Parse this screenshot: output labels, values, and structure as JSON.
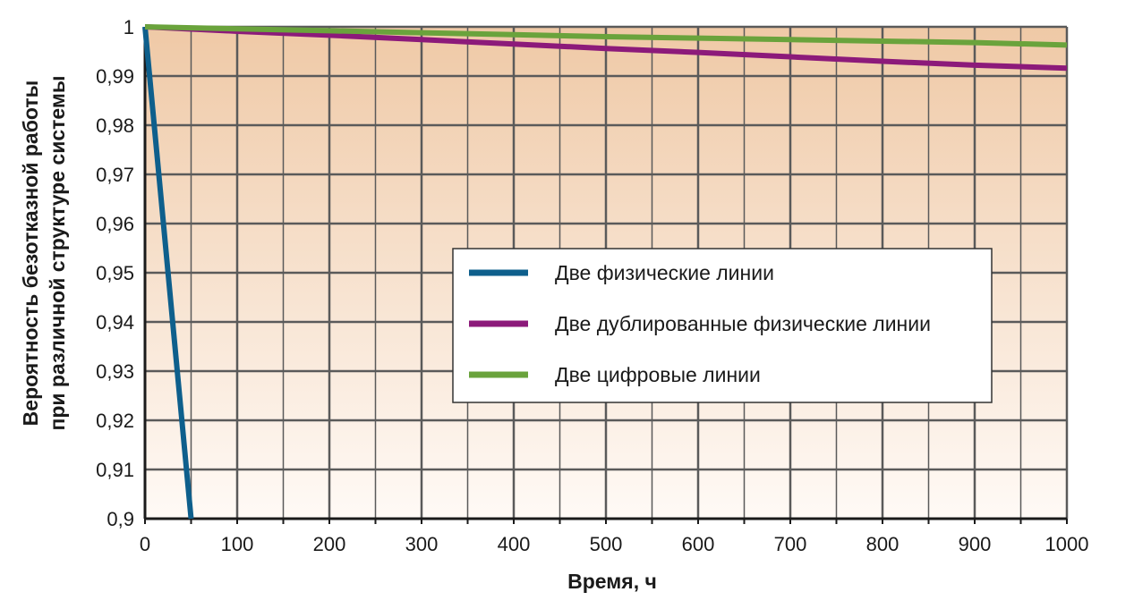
{
  "chart_data": {
    "type": "line",
    "xlabel": "Время, ч",
    "ylabel_line1": "Вероятность безотказной работы",
    "ylabel_line2": "при различной структуре системы",
    "xlim": [
      0,
      1000
    ],
    "ylim": [
      0.9,
      1
    ],
    "x_ticks": [
      0,
      100,
      200,
      300,
      400,
      500,
      600,
      700,
      800,
      900,
      1000
    ],
    "x_tick_labels": [
      "0",
      "100",
      "200",
      "300",
      "400",
      "500",
      "600",
      "700",
      "800",
      "900",
      "1000"
    ],
    "y_ticks": [
      0.9,
      0.91,
      0.92,
      0.93,
      0.94,
      0.95,
      0.96,
      0.97,
      0.98,
      0.99,
      1
    ],
    "y_tick_labels": [
      "0,9",
      "0,91",
      "0,92",
      "0,93",
      "0,94",
      "0,95",
      "0,96",
      "0,97",
      "0,98",
      "0,99",
      "1"
    ],
    "grid": true,
    "legend_position": "center-right",
    "series": [
      {
        "name": "Две физические линии",
        "color": "#0e5f8c",
        "x": [
          0,
          48,
          50
        ],
        "y": [
          1,
          0.904,
          0.9
        ]
      },
      {
        "name": "Две дублированные физические линии",
        "color": "#8c1a7a",
        "x": [
          0,
          100,
          200,
          300,
          400,
          500,
          600,
          700,
          800,
          900,
          1000
        ],
        "y": [
          1,
          0.9991,
          0.9983,
          0.9974,
          0.9965,
          0.9956,
          0.9948,
          0.9939,
          0.993,
          0.9922,
          0.9916
        ]
      },
      {
        "name": "Две цифровые линии",
        "color": "#6aa33c",
        "x": [
          0,
          100,
          200,
          300,
          400,
          500,
          600,
          700,
          800,
          900,
          1000
        ],
        "y": [
          1,
          0.9996,
          0.9992,
          0.9988,
          0.9984,
          0.998,
          0.9977,
          0.9974,
          0.9971,
          0.9968,
          0.9963
        ]
      }
    ]
  }
}
